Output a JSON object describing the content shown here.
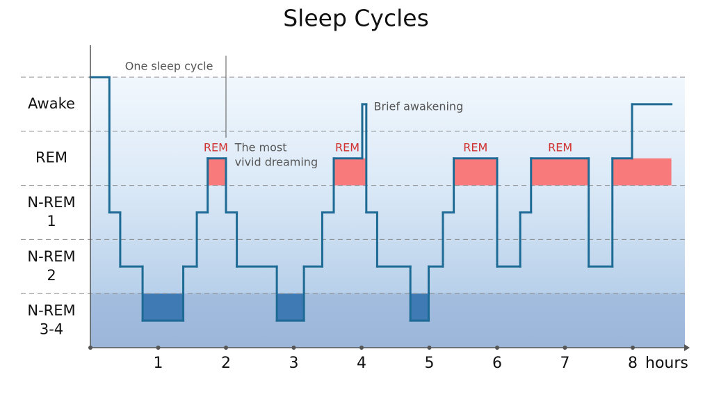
{
  "chart_data": {
    "type": "step",
    "title": "Sleep Cycles",
    "x_label": "hours",
    "xlim": [
      0,
      8.8
    ],
    "xticks": [
      1,
      2,
      3,
      4,
      5,
      6,
      7,
      8
    ],
    "ylim": [
      0,
      5
    ],
    "yticks": [
      1,
      2,
      3,
      4,
      5
    ],
    "grid": true,
    "stage_labels": [
      {
        "value": 4.5,
        "label": [
          "Awake"
        ]
      },
      {
        "value": 3.5,
        "label": [
          "REM"
        ]
      },
      {
        "value": 2.5,
        "label": [
          "N-REM",
          "1"
        ]
      },
      {
        "value": 1.5,
        "label": [
          "N-REM",
          "2"
        ]
      },
      {
        "value": 0.5,
        "label": [
          "N-REM",
          "3-4"
        ]
      }
    ],
    "x": [
      0,
      0.28,
      0.44,
      0.77,
      1.37,
      1.57,
      1.73,
      2.0,
      2.16,
      2.75,
      3.15,
      3.42,
      3.59,
      4.01,
      4.07,
      4.23,
      4.72,
      4.99,
      5.2,
      5.36,
      6.0,
      6.34,
      6.5,
      7.35,
      7.7,
      7.99,
      8.57
    ],
    "values": [
      5,
      2.5,
      1.5,
      0.5,
      1.5,
      2.5,
      3.5,
      2.5,
      1.5,
      0.5,
      1.5,
      2.5,
      3.5,
      4.5,
      2.5,
      1.5,
      0.5,
      1.5,
      2.5,
      3.5,
      1.5,
      2.5,
      3.5,
      1.5,
      3.5,
      4.5,
      4.5
    ],
    "color": "#1d6b95",
    "rem_color": "#f87a7a",
    "deep_color": "#3f7ab5",
    "annotations": [
      {
        "text": [
          "One sleep cycle"
        ],
        "x": 0.51,
        "y": 5.19,
        "color": "#555555"
      },
      {
        "text": [
          "The most",
          "vivid dreaming"
        ],
        "x": 2.13,
        "y": 3.69,
        "color": "#555555"
      },
      {
        "text": [
          "Brief awakening"
        ],
        "x": 4.18,
        "y": 4.45,
        "color": "#555555"
      },
      {
        "text": [
          "REM"
        ],
        "x": 1.85,
        "y": 3.69,
        "color": "#d0302e",
        "anchor": "middle"
      },
      {
        "text": [
          "REM"
        ],
        "x": 3.79,
        "y": 3.69,
        "color": "#d0302e",
        "anchor": "middle"
      },
      {
        "text": [
          "REM"
        ],
        "x": 5.68,
        "y": 3.69,
        "color": "#d0302e",
        "anchor": "middle"
      },
      {
        "text": [
          "REM"
        ],
        "x": 6.93,
        "y": 3.69,
        "color": "#d0302e",
        "anchor": "middle"
      }
    ]
  }
}
